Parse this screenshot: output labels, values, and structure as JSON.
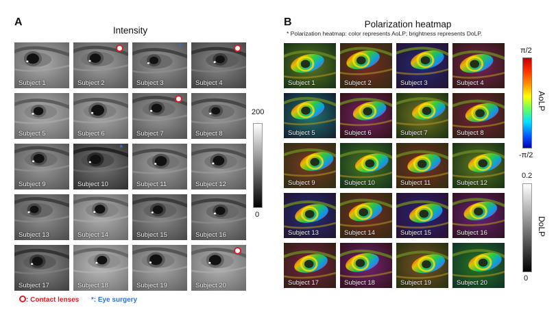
{
  "panel_a": {
    "letter": "A",
    "title": "Intensity",
    "colorbar": {
      "max_label": "200",
      "min_label": "0"
    }
  },
  "panel_b": {
    "letter": "B",
    "title": "Polarization heatmap",
    "note": "* Polarization heatmap: color represents AoLP; brightness represents DoLP.",
    "aolp_bar": {
      "top_label": "π/2",
      "bottom_label": "-π/2",
      "axis_label": "AoLP"
    },
    "dolp_bar": {
      "top_label": "0.2",
      "bottom_label": "0",
      "axis_label": "DoLP"
    }
  },
  "legend": {
    "lens_text": ": Contact lenses",
    "surgery_symbol": "*",
    "surgery_text": ": Eye surgery",
    "lens_color": "#e01b24",
    "surgery_color": "#2f6fe0"
  },
  "subjects": [
    {
      "label": "Subject 1",
      "mark": ""
    },
    {
      "label": "Subject 2",
      "mark": "lens"
    },
    {
      "label": "Subject 3",
      "mark": "surgery"
    },
    {
      "label": "Subject 4",
      "mark": "lens"
    },
    {
      "label": "Subject 5",
      "mark": ""
    },
    {
      "label": "Subject 6",
      "mark": ""
    },
    {
      "label": "Subject 7",
      "mark": "lens"
    },
    {
      "label": "Subject 8",
      "mark": ""
    },
    {
      "label": "Subject 9",
      "mark": ""
    },
    {
      "label": "Subject 10",
      "mark": "surgery"
    },
    {
      "label": "Subject 11",
      "mark": ""
    },
    {
      "label": "Subject 12",
      "mark": ""
    },
    {
      "label": "Subject 13",
      "mark": ""
    },
    {
      "label": "Subject 14",
      "mark": ""
    },
    {
      "label": "Subject 15",
      "mark": ""
    },
    {
      "label": "Subject 16",
      "mark": ""
    },
    {
      "label": "Subject 17",
      "mark": ""
    },
    {
      "label": "Subject 18",
      "mark": ""
    },
    {
      "label": "Subject 19",
      "mark": ""
    },
    {
      "label": "Subject 20",
      "mark": "lens"
    }
  ]
}
